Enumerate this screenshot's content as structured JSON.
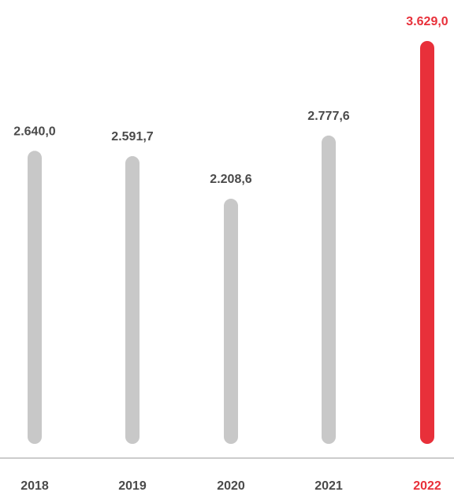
{
  "chart_data": {
    "type": "bar",
    "categories": [
      "2018",
      "2019",
      "2020",
      "2021",
      "2022"
    ],
    "values": [
      2640.0,
      2591.7,
      2208.6,
      2777.6,
      3629.0
    ],
    "value_labels": [
      "2.640,0",
      "2.591,7",
      "2.208,6",
      "2.777,6",
      "3.629,0"
    ],
    "title": "",
    "xlabel": "",
    "ylabel": "",
    "ylim": [
      0,
      3629.0
    ],
    "grid": false,
    "highlight_index": 4,
    "colors": {
      "bar": "#c8c8c8",
      "highlight": "#e8303a",
      "label": "#4a4a4a",
      "axis": "#9a9a9a"
    }
  }
}
